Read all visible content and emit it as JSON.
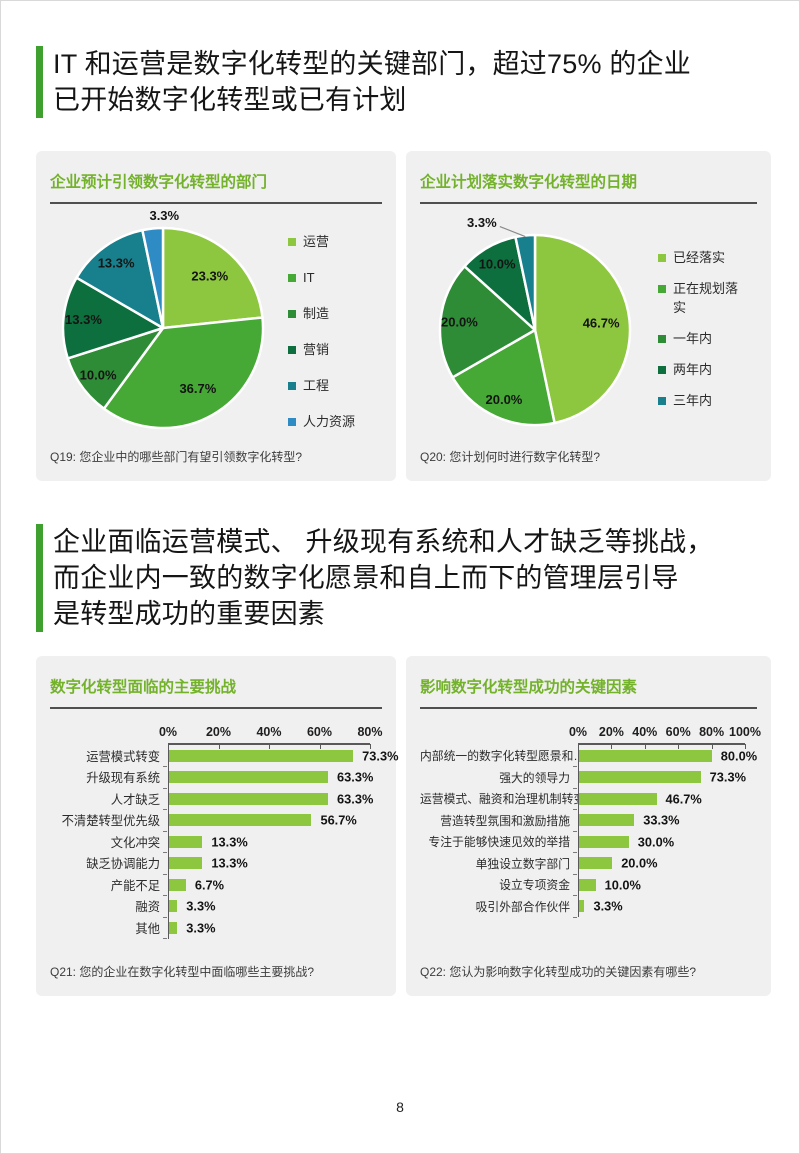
{
  "page": {
    "number": "8"
  },
  "headings": {
    "h1": {
      "lines": [
        "IT 和运营是数字化转型的关键部门，超过75% 的企业",
        "已开始数字化转型或已有计划"
      ]
    },
    "h2": {
      "lines": [
        "企业面临运营模式、 升级现有系统和人才缺乏等挑战，",
        "而企业内一致的数字化愿景和自上而下的管理层引导",
        "是转型成功的重要因素"
      ]
    }
  },
  "colors": {
    "heading_accent_bar": "#3FA02F",
    "panel_title_green": "#74B22C",
    "panel_background": "#F0F0F0",
    "divider": "#4F4F4F",
    "bar_green": "#8DC63F"
  },
  "chart_data": [
    {
      "type": "pie",
      "title": "企业预计引领数字化转型的部门",
      "caption": "Q19: 您企业中的哪些部门有望引领数字化转型?",
      "legend_position": "right",
      "labels": [
        "运营",
        "IT",
        "制造",
        "营销",
        "工程",
        "人力资源"
      ],
      "values": [
        23.3,
        36.7,
        10.0,
        13.3,
        13.3,
        3.3
      ],
      "value_labels": [
        "23.3%",
        "36.7%",
        "10.0%",
        "13.3%",
        "13.3%",
        "3.3%"
      ],
      "colors": [
        "#8DC63F",
        "#46A835",
        "#2E8C36",
        "#0E6F3E",
        "#18808D",
        "#2E8BC4"
      ]
    },
    {
      "type": "pie",
      "title": "企业计划落实数字化转型的日期",
      "caption": "Q20: 您计划何时进行数字化转型?",
      "legend_position": "right",
      "labels": [
        "已经落实",
        "正在规划落实",
        "一年内",
        "两年内",
        "三年内"
      ],
      "values": [
        46.7,
        20.0,
        20.0,
        10.0,
        3.3
      ],
      "value_labels": [
        "46.7%",
        "20.0%",
        "20.0%",
        "10.0%",
        "3.3%"
      ],
      "colors": [
        "#8DC63F",
        "#46A835",
        "#2E8C36",
        "#0E6F3E",
        "#18808D"
      ]
    },
    {
      "type": "bar",
      "orientation": "horizontal",
      "title": "数字化转型面临的主要挑战",
      "caption": "Q21: 您的企业在数字化转型中面临哪些主要挑战?",
      "categories": [
        "运营模式转变",
        "升级现有系统",
        "人才缺乏",
        "不清楚转型优先级",
        "文化冲突",
        "缺乏协调能力",
        "产能不足",
        "融资",
        "其他"
      ],
      "values": [
        73.3,
        63.3,
        63.3,
        56.7,
        13.3,
        13.3,
        6.7,
        3.3,
        3.3
      ],
      "value_labels": [
        "73.3%",
        "63.3%",
        "63.3%",
        "56.7%",
        "13.3%",
        "13.3%",
        "6.7%",
        "3.3%",
        "3.3%"
      ],
      "axis_ticks": [
        "0%",
        "20%",
        "40%",
        "60%",
        "80%"
      ],
      "axis_max": 80,
      "bar_color": "#8DC63F"
    },
    {
      "type": "bar",
      "orientation": "horizontal",
      "title": "影响数字化转型成功的关键因素",
      "caption": "Q22: 您认为影响数字化转型成功的关键因素有哪些?",
      "categories": [
        "内部统一的数字化转型愿景和…",
        "强大的领导力",
        "运营模式、融资和治理机制转变",
        "营造转型氛围和激励措施",
        "专注于能够快速见效的举措",
        "单独设立数字部门",
        "设立专项资金",
        "吸引外部合作伙伴"
      ],
      "values": [
        80.0,
        73.3,
        46.7,
        33.3,
        30.0,
        20.0,
        10.0,
        3.3
      ],
      "value_labels": [
        "80.0%",
        "73.3%",
        "46.7%",
        "33.3%",
        "30.0%",
        "20.0%",
        "10.0%",
        "3.3%"
      ],
      "axis_ticks": [
        "0%",
        "20%",
        "40%",
        "60%",
        "80%",
        "100%"
      ],
      "axis_max": 100,
      "bar_color": "#8DC63F"
    }
  ]
}
